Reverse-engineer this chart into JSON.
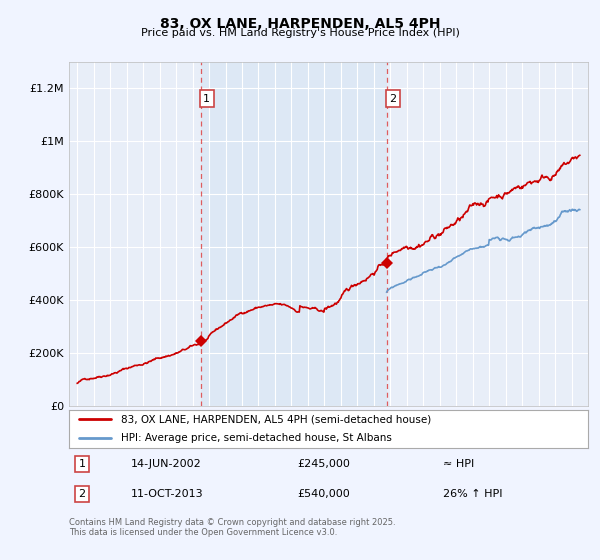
{
  "title": "83, OX LANE, HARPENDEN, AL5 4PH",
  "subtitle": "Price paid vs. HM Land Registry's House Price Index (HPI)",
  "background_color": "#f0f4ff",
  "plot_bg_color": "#e8eef8",
  "plot_bg_color_between": "#dde8f5",
  "ylim": [
    0,
    1300000
  ],
  "yticks": [
    0,
    200000,
    400000,
    600000,
    800000,
    1000000,
    1200000
  ],
  "ytick_labels": [
    "£0",
    "£200K",
    "£400K",
    "£600K",
    "£800K",
    "£1M",
    "£1.2M"
  ],
  "line1_color": "#cc0000",
  "line2_color": "#6699cc",
  "transaction1_year": 2002.5,
  "transaction1_price": 245000,
  "transaction2_year": 2013.78,
  "transaction2_price": 540000,
  "legend_label1": "83, OX LANE, HARPENDEN, AL5 4PH (semi-detached house)",
  "legend_label2": "HPI: Average price, semi-detached house, St Albans",
  "annotation1": [
    "1",
    "14-JUN-2002",
    "£245,000",
    "≈ HPI"
  ],
  "annotation2": [
    "2",
    "11-OCT-2013",
    "£540,000",
    "26% ↑ HPI"
  ],
  "footer": "Contains HM Land Registry data © Crown copyright and database right 2025.\nThis data is licensed under the Open Government Licence v3.0.",
  "vline1_year": 2002.5,
  "vline2_year": 2013.78,
  "red_seed": 42,
  "blue_seed": 99
}
